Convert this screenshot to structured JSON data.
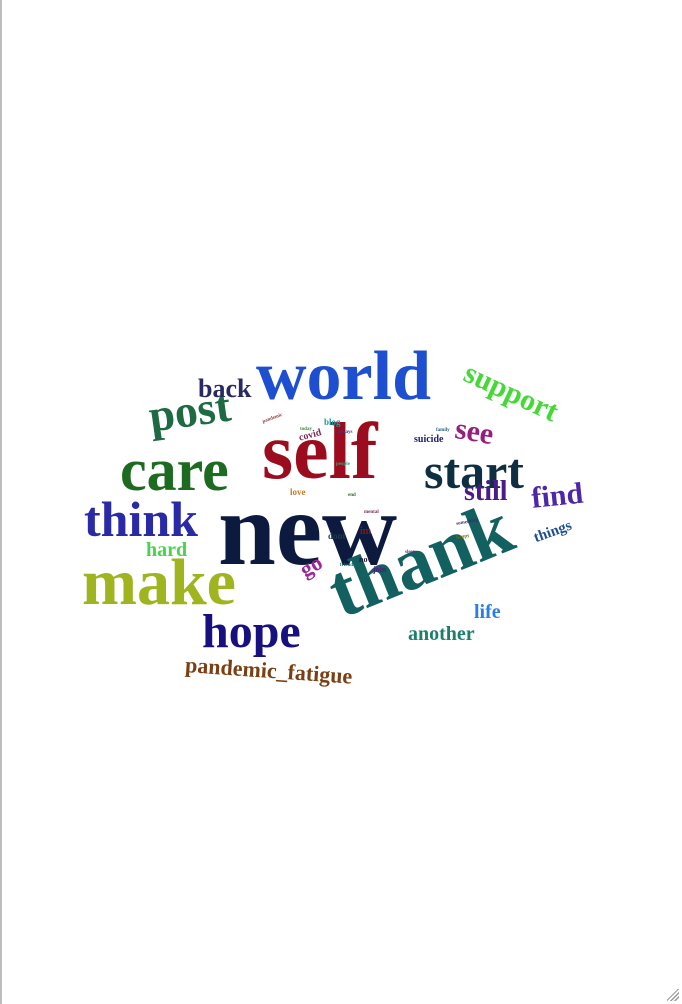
{
  "words": [
    {
      "key": "new",
      "text": "new",
      "color": "#0d1a40"
    },
    {
      "key": "self",
      "text": "self",
      "color": "#9b0d1e"
    },
    {
      "key": "world",
      "text": "world",
      "color": "#1f4fd1"
    },
    {
      "key": "thank",
      "text": "thank",
      "color": "#136060"
    },
    {
      "key": "make",
      "text": "make",
      "color": "#9fb41f"
    },
    {
      "key": "care",
      "text": "care",
      "color": "#1d6b21"
    },
    {
      "key": "start",
      "text": "start",
      "color": "#0e2f42"
    },
    {
      "key": "think",
      "text": "think",
      "color": "#2a2aa6"
    },
    {
      "key": "post",
      "text": "post",
      "color": "#1e6b43"
    },
    {
      "key": "hope",
      "text": "hope",
      "color": "#17107e"
    },
    {
      "key": "support",
      "text": "support",
      "color": "#44d936"
    },
    {
      "key": "see",
      "text": "see",
      "color": "#961f7e"
    },
    {
      "key": "find",
      "text": "find",
      "color": "#4d27a8"
    },
    {
      "key": "still",
      "text": "still",
      "color": "#4a1c8a"
    },
    {
      "key": "back",
      "text": "back",
      "color": "#2a2a63"
    },
    {
      "key": "hard",
      "text": "hard",
      "color": "#4ad24f"
    },
    {
      "key": "life",
      "text": "life",
      "color": "#2b7fe0"
    },
    {
      "key": "another",
      "text": "another",
      "color": "#1c7f6c"
    },
    {
      "key": "go",
      "text": "go",
      "color": "#9b279b"
    },
    {
      "key": "things",
      "text": "things",
      "color": "#1f4f8f"
    },
    {
      "key": "pandemic_fatigue",
      "text": "pandemic_fatigue",
      "color": "#7a3f12"
    },
    {
      "key": "suicide",
      "text": "suicide",
      "color": "#1d1d6e"
    },
    {
      "key": "covid",
      "text": "covid",
      "color": "#822a52"
    },
    {
      "key": "blog",
      "text": "blog",
      "color": "#1f9a9a"
    },
    {
      "key": "dont",
      "text": "dont",
      "color": "#1d3a4f"
    },
    {
      "key": "im",
      "text": "im",
      "color": "#7a1a1a"
    },
    {
      "key": "now",
      "text": "now",
      "color": "#1a1a3a"
    },
    {
      "key": "join",
      "text": "join",
      "color": "#4a1f7a"
    },
    {
      "key": "love",
      "text": "love",
      "color": "#c07a2a"
    },
    {
      "key": "people",
      "text": "people",
      "color": "#3aa07a"
    },
    {
      "key": "always",
      "text": "always",
      "color": "#3a3a8a"
    },
    {
      "key": "pandemic",
      "text": "pandemic",
      "color": "#8a3a3a"
    },
    {
      "key": "today",
      "text": "today",
      "color": "#3a8a3a"
    },
    {
      "key": "family",
      "text": "family",
      "color": "#2a5a8a"
    },
    {
      "key": "something",
      "text": "something",
      "color": "#3a2a6a"
    },
    {
      "key": "happy",
      "text": "happy",
      "color": "#6a6a1a"
    },
    {
      "key": "sleep",
      "text": "sleep",
      "color": "#5a3a7a"
    },
    {
      "key": "end",
      "text": "end",
      "color": "#2a6a2a"
    },
    {
      "key": "mental",
      "text": "mental",
      "color": "#7a2a5a"
    },
    {
      "key": "friends",
      "text": "friends",
      "color": "#1a6a6a"
    }
  ]
}
